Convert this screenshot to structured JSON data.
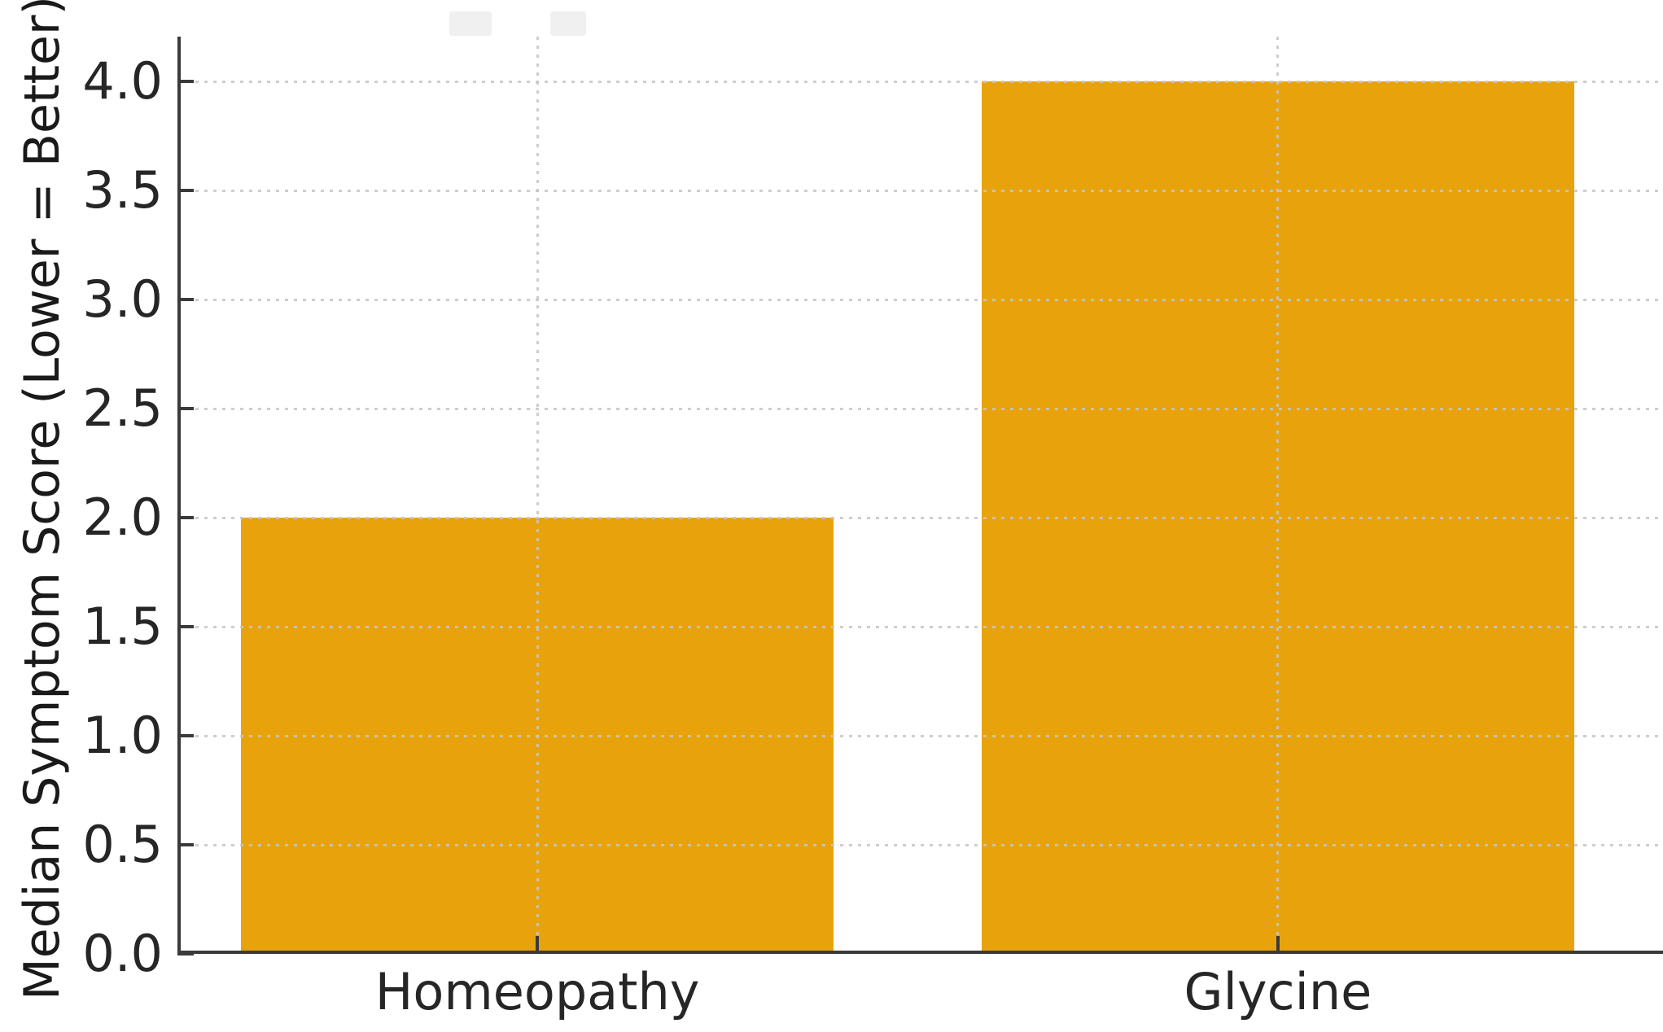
{
  "chart_data": {
    "type": "bar",
    "categories": [
      "Homeopathy",
      "Glycine"
    ],
    "values": [
      2.0,
      4.0
    ],
    "title": "",
    "xlabel": "",
    "ylabel": "Median Symptom Score (Lower = Better)",
    "yticks": [
      0,
      0.5,
      1,
      1.5,
      2,
      2.5,
      3,
      3.5,
      4
    ],
    "yticklabels": [
      "0.0",
      "0.5",
      "1.0",
      "1.5",
      "2.0",
      "2.5",
      "3.0",
      "3.5",
      "4.0"
    ],
    "ylim": [
      0,
      4.206
    ],
    "xlim": [
      -0.486,
      1.52
    ],
    "bar_width": 0.8,
    "grid": "dashed, horizontal at each ytick and vertical at each category center",
    "legend": "none",
    "colors": {
      "bar_fill": "#E8A30C",
      "axis_spine": "#3a3a3a",
      "tick_mark": "#3a3a3a",
      "tick_label_text": "#262626",
      "gridline": "#c6c6c6",
      "background": "#ffffff"
    }
  }
}
